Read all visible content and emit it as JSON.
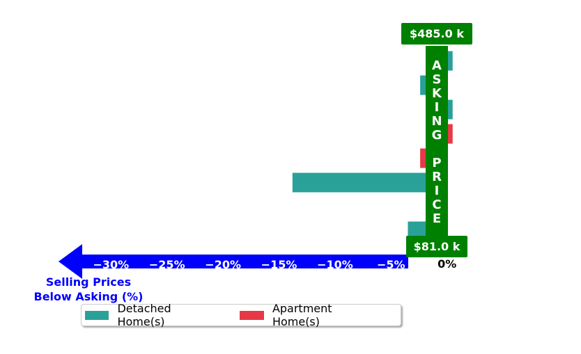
{
  "chart_data": {
    "type": "bar",
    "orientation": "horizontal",
    "xlabel_lines": [
      "Selling Prices",
      "Below Asking (%)"
    ],
    "x_ticks": [
      "−30%",
      "−25%",
      "−20%",
      "−15%",
      "−10%",
      "−5%",
      "0%"
    ],
    "x_tick_values": [
      -30,
      -25,
      -20,
      -15,
      -10,
      -5,
      0
    ],
    "xlim": [
      -34.5,
      1.2
    ],
    "center_band_text": "ASKING PRICE",
    "top_value_label": "$485.0 k",
    "bottom_value_label": "$81.0 k",
    "rows": 8,
    "series": [
      {
        "name": "Detached Home(s)",
        "color": "#2aa198",
        "values": [
          0.5,
          -2.4,
          0.5,
          0,
          0,
          -13.8,
          0,
          -3.5
        ]
      },
      {
        "name": "Apartment Home(s)",
        "color": "#e63946",
        "values": [
          0,
          0,
          0,
          0.5,
          -2.4,
          0,
          0,
          0
        ]
      }
    ],
    "legend": "bottom"
  },
  "colors": {
    "arrow": "#0000ff",
    "band": "#008000"
  }
}
